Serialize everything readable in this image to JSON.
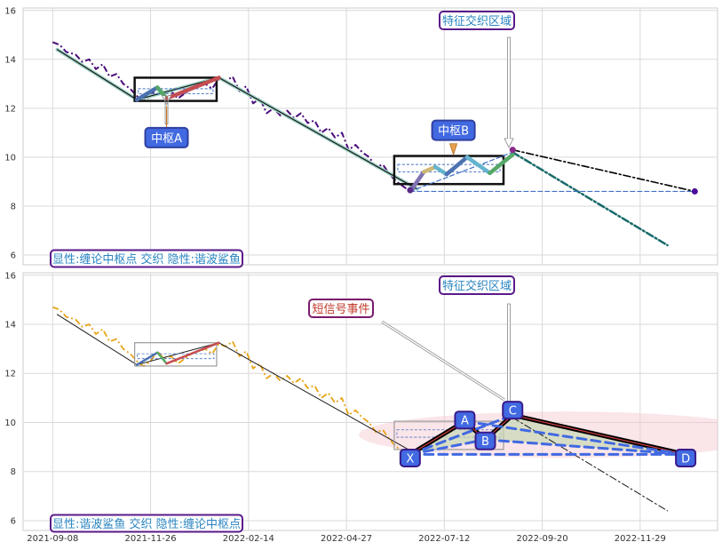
{
  "chart_data": {
    "type": "line",
    "panels": [
      {
        "id": "top",
        "ylim": [
          5.6,
          16.1
        ],
        "yticks": [
          "6",
          "8",
          "10",
          "12",
          "14",
          "16"
        ],
        "price_series": [
          [
            0,
            14.7
          ],
          [
            3,
            14.6
          ],
          [
            6,
            14.3
          ],
          [
            10,
            14.2
          ],
          [
            13,
            13.9
          ],
          [
            16,
            14.0
          ],
          [
            19,
            13.6
          ],
          [
            22,
            13.8
          ],
          [
            25,
            13.3
          ],
          [
            28,
            13.4
          ],
          [
            31,
            13.0
          ],
          [
            34,
            12.8
          ],
          [
            38,
            12.4
          ],
          [
            40,
            12.3
          ],
          [
            43,
            12.5
          ],
          [
            46,
            12.9
          ],
          [
            49,
            12.6
          ],
          [
            52,
            12.7
          ],
          [
            55,
            12.4
          ],
          [
            58,
            12.6
          ],
          [
            61,
            12.8
          ],
          [
            64,
            12.9
          ],
          [
            67,
            13.0
          ],
          [
            70,
            12.8
          ],
          [
            73,
            13.2
          ],
          [
            76,
            13.1
          ],
          [
            79,
            13.3
          ],
          [
            82,
            12.7
          ],
          [
            85,
            12.9
          ],
          [
            88,
            12.2
          ],
          [
            91,
            12.4
          ],
          [
            94,
            11.8
          ],
          [
            97,
            12.0
          ],
          [
            100,
            11.7
          ],
          [
            103,
            11.9
          ],
          [
            106,
            11.6
          ],
          [
            109,
            11.8
          ],
          [
            112,
            11.4
          ],
          [
            115,
            11.5
          ],
          [
            118,
            11.0
          ],
          [
            121,
            11.2
          ],
          [
            124,
            10.8
          ],
          [
            127,
            11.0
          ],
          [
            130,
            10.3
          ],
          [
            133,
            10.5
          ],
          [
            136,
            10.2
          ],
          [
            139,
            10.0
          ],
          [
            142,
            9.6
          ],
          [
            145,
            9.7
          ],
          [
            148,
            9.3
          ],
          [
            151,
            9.0
          ],
          [
            154,
            8.8
          ],
          [
            157,
            8.6
          ]
        ],
        "zigzag_trend": [
          [
            2,
            14.4
          ],
          [
            37,
            12.35
          ],
          [
            73,
            13.25
          ],
          [
            160,
            8.7
          ]
        ],
        "overlay_after": [
          [
            188,
            9.6
          ],
          [
            192,
            9.4
          ],
          [
            196,
            9.8
          ],
          [
            200,
            10.2
          ]
        ],
        "boxes": [
          {
            "x0": 36,
            "x1": 72,
            "y0": 12.3,
            "y1": 13.25,
            "thick": true,
            "inner": [
              12.6,
              12.8
            ]
          },
          {
            "x0": 150,
            "x1": 198,
            "y0": 8.9,
            "y1": 10.05,
            "thick": true,
            "inner": [
              9.4,
              9.7
            ]
          }
        ],
        "pivot_strokes": [
          {
            "from": [
              37,
              12.35
            ],
            "to": [
              46,
              12.85
            ],
            "color": "#4C72B0"
          },
          {
            "from": [
              46,
              12.85
            ],
            "to": [
              50,
              12.4
            ],
            "color": "#55A868"
          },
          {
            "from": [
              50,
              12.4
            ],
            "to": [
              73,
              13.25
            ],
            "color": "#C44E52"
          },
          {
            "from": [
              157,
              8.6
            ],
            "to": [
              163,
              9.4
            ],
            "color": "#8172B2"
          },
          {
            "from": [
              163,
              9.4
            ],
            "to": [
              168,
              9.6
            ],
            "color": "#CCB974"
          },
          {
            "from": [
              168,
              9.6
            ],
            "to": [
              173,
              9.3
            ],
            "color": "#64B5CD"
          },
          {
            "from": [
              173,
              9.3
            ],
            "to": [
              182,
              10.0
            ],
            "color": "#4C72B0"
          },
          {
            "from": [
              182,
              10.0
            ],
            "to": [
              192,
              9.35
            ],
            "color": "#64B5CD"
          },
          {
            "from": [
              192,
              9.35
            ],
            "to": [
              202,
              10.1
            ],
            "color": "#55A868"
          }
        ],
        "projections": [
          {
            "from": [
              202,
              10.3
            ],
            "to": [
              282,
              8.6
            ],
            "style": "dashdot",
            "color": "#000000",
            "width": 1.6
          },
          {
            "from": [
              202,
              10.2
            ],
            "to": [
              270,
              6.4
            ],
            "style": "dashdot",
            "color": "#1a6a6a",
            "width": 2.5
          },
          {
            "from": [
              157,
              8.6
            ],
            "to": [
              282,
              8.6
            ],
            "style": "dashed",
            "color": "#4472C4",
            "width": 1.2
          },
          {
            "from": [
              157,
              8.6
            ],
            "to": [
              202,
              10.2
            ],
            "style": "dashed",
            "color": "#4472C4",
            "width": 1.2
          }
        ],
        "markers": [
          [
            157,
            8.65,
            "#5a2a8a"
          ],
          [
            202,
            10.3,
            "#8a2a8a"
          ],
          [
            282,
            8.6,
            "#4b0c9c"
          ]
        ],
        "pivot_label_a": "中枢A",
        "pivot_label_b": "中枢B",
        "feature_label": "特征交织区域",
        "legend_text": "显性:缠论中枢点 交织 隐性:谐波鲨鱼"
      },
      {
        "id": "bottom",
        "ylim": [
          5.6,
          16.1
        ],
        "yticks": [
          "6",
          "8",
          "10",
          "12",
          "14",
          "16"
        ],
        "harmonic_points": [
          {
            "label": "X",
            "x": 157,
            "y": 8.7
          },
          {
            "label": "A",
            "x": 181,
            "y": 10.05
          },
          {
            "label": "B",
            "x": 190,
            "y": 9.3
          },
          {
            "label": "C",
            "x": 202,
            "y": 10.3
          },
          {
            "label": "D",
            "x": 278,
            "y": 8.7
          }
        ],
        "feature_label": "特征交织区域",
        "signal_label": "短信号事件",
        "legend_text": "显性:谐波鲨鱼 交织 隐性:缠论中枢点"
      }
    ],
    "x_ticks": [
      {
        "x": 0,
        "label": "2021-09-08"
      },
      {
        "x": 43,
        "label": "2021-11-26"
      },
      {
        "x": 86,
        "label": "2022-02-14"
      },
      {
        "x": 129,
        "label": "2022-04-27"
      },
      {
        "x": 172,
        "label": "2022-07-12"
      },
      {
        "x": 215,
        "label": "2022-09-20"
      },
      {
        "x": 258,
        "label": "2022-11-29"
      }
    ],
    "xlim": [
      -13,
      292
    ]
  }
}
